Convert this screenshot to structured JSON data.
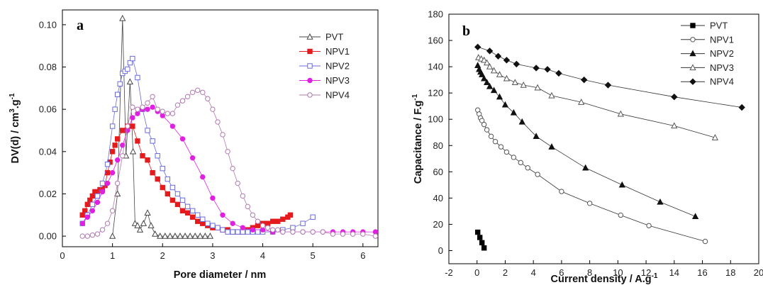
{
  "chart_data": [
    {
      "type": "line",
      "panel_label": "a",
      "xlabel": "Pore diameter / nm",
      "ylabel": "DV(d) / cm",
      "ylabel_sup": "3",
      "ylabel_tail": ".g",
      "ylabel_sup2": "-1",
      "xlim": [
        0,
        6.3
      ],
      "ylim": [
        -0.005,
        0.107
      ],
      "xticks": [
        0,
        1,
        2,
        3,
        4,
        5,
        6
      ],
      "yticks": [
        0.0,
        0.02,
        0.04,
        0.06,
        0.08,
        0.1
      ],
      "ytick_labels": [
        "0.00",
        "0.02",
        "0.04",
        "0.06",
        "0.08",
        "0.10"
      ],
      "legend_position": "top-right",
      "series": [
        {
          "name": "PVT",
          "color": "#444444",
          "marker": "triangle-open",
          "x": [
            1.0,
            1.1,
            1.2,
            1.27,
            1.35,
            1.41,
            1.45,
            1.5,
            1.55,
            1.62,
            1.7,
            1.77,
            1.85,
            1.95,
            2.05,
            2.15,
            2.25,
            2.35,
            2.45,
            2.55,
            2.65,
            2.75,
            2.85,
            2.95
          ],
          "y": [
            0.0,
            0.02,
            0.103,
            0.038,
            0.073,
            0.04,
            0.006,
            0.005,
            0.003,
            0.006,
            0.011,
            0.005,
            0.001,
            0.0,
            0.0,
            0.0,
            0.0,
            0.0,
            0.0,
            0.0,
            0.0,
            0.0,
            0.0,
            0.0
          ]
        },
        {
          "name": "NPV1",
          "color": "#e41a1c",
          "marker": "square-filled",
          "x": [
            0.4,
            0.45,
            0.5,
            0.55,
            0.6,
            0.65,
            0.7,
            0.75,
            0.8,
            0.85,
            0.9,
            0.95,
            1.0,
            1.05,
            1.1,
            1.2,
            1.3,
            1.4,
            1.5,
            1.6,
            1.7,
            1.8,
            1.9,
            2.0,
            2.1,
            2.2,
            2.3,
            2.4,
            2.5,
            2.6,
            2.7,
            2.8,
            2.9,
            3.0,
            3.1,
            3.2,
            3.3,
            3.4,
            3.5,
            3.6,
            3.7,
            3.8,
            3.9,
            4.0,
            4.1,
            4.2,
            4.3,
            4.4,
            4.5,
            4.55
          ],
          "y": [
            0.01,
            0.012,
            0.015,
            0.017,
            0.019,
            0.021,
            0.021,
            0.022,
            0.022,
            0.024,
            0.03,
            0.035,
            0.04,
            0.043,
            0.046,
            0.05,
            0.052,
            0.052,
            0.045,
            0.038,
            0.036,
            0.03,
            0.027,
            0.023,
            0.02,
            0.017,
            0.015,
            0.012,
            0.011,
            0.009,
            0.007,
            0.006,
            0.005,
            0.004,
            0.004,
            0.003,
            0.003,
            0.002,
            0.002,
            0.002,
            0.003,
            0.004,
            0.005,
            0.006,
            0.006,
            0.007,
            0.007,
            0.008,
            0.009,
            0.01
          ]
        },
        {
          "name": "NPV2",
          "color": "#6a6add",
          "marker": "square-open",
          "x": [
            0.4,
            0.5,
            0.6,
            0.7,
            0.8,
            0.9,
            1.0,
            1.05,
            1.1,
            1.15,
            1.2,
            1.25,
            1.3,
            1.35,
            1.4,
            1.5,
            1.6,
            1.7,
            1.8,
            1.9,
            2.0,
            2.1,
            2.2,
            2.3,
            2.4,
            2.5,
            2.6,
            2.7,
            2.8,
            2.9,
            3.0,
            3.1,
            3.2,
            3.3,
            3.4,
            3.5,
            3.6,
            3.7,
            3.8,
            3.9,
            4.0,
            4.2,
            4.4,
            4.6,
            4.8,
            5.0
          ],
          "y": [
            0.006,
            0.01,
            0.015,
            0.019,
            0.025,
            0.034,
            0.052,
            0.06,
            0.067,
            0.072,
            0.077,
            0.078,
            0.079,
            0.082,
            0.084,
            0.075,
            0.06,
            0.05,
            0.045,
            0.038,
            0.032,
            0.027,
            0.023,
            0.02,
            0.017,
            0.014,
            0.012,
            0.01,
            0.008,
            0.006,
            0.005,
            0.004,
            0.003,
            0.002,
            0.002,
            0.002,
            0.002,
            0.002,
            0.002,
            0.002,
            0.002,
            0.002,
            0.003,
            0.004,
            0.006,
            0.009
          ]
        },
        {
          "name": "NPV3",
          "color": "#e020e0",
          "marker": "circle-filled",
          "x": [
            0.4,
            0.5,
            0.6,
            0.7,
            0.8,
            0.9,
            1.0,
            1.1,
            1.2,
            1.3,
            1.4,
            1.5,
            1.6,
            1.7,
            1.8,
            1.9,
            2.0,
            2.2,
            2.4,
            2.6,
            2.8,
            3.0,
            3.2,
            3.4,
            3.6,
            3.8,
            4.0,
            4.2,
            4.4,
            4.6,
            4.8,
            5.0,
            5.2,
            5.4,
            5.6,
            5.8,
            6.0,
            6.25
          ],
          "y": [
            0.006,
            0.009,
            0.012,
            0.016,
            0.021,
            0.025,
            0.03,
            0.036,
            0.043,
            0.05,
            0.056,
            0.058,
            0.06,
            0.06,
            0.061,
            0.059,
            0.057,
            0.052,
            0.046,
            0.037,
            0.028,
            0.018,
            0.01,
            0.006,
            0.004,
            0.003,
            0.003,
            0.002,
            0.002,
            0.002,
            0.002,
            0.002,
            0.002,
            0.002,
            0.002,
            0.002,
            0.002,
            0.002
          ]
        },
        {
          "name": "NPV4",
          "color": "#b07ab0",
          "marker": "circle-open",
          "x": [
            0.4,
            0.5,
            0.6,
            0.7,
            0.8,
            0.9,
            1.0,
            1.1,
            1.2,
            1.3,
            1.4,
            1.5,
            1.6,
            1.7,
            1.8,
            1.9,
            2.0,
            2.1,
            2.2,
            2.3,
            2.4,
            2.5,
            2.6,
            2.7,
            2.8,
            2.9,
            3.0,
            3.1,
            3.2,
            3.3,
            3.4,
            3.5,
            3.6,
            3.7,
            3.8,
            3.9,
            4.0,
            4.1,
            4.2,
            4.3,
            4.4,
            4.6,
            4.8,
            5.0,
            5.2,
            5.4,
            5.6,
            5.8,
            6.0,
            6.25
          ],
          "y": [
            0.0,
            0.0,
            0.0005,
            0.001,
            0.003,
            0.006,
            0.012,
            0.025,
            0.038,
            0.052,
            0.061,
            0.06,
            0.061,
            0.063,
            0.066,
            0.06,
            0.059,
            0.058,
            0.058,
            0.062,
            0.064,
            0.066,
            0.068,
            0.069,
            0.068,
            0.065,
            0.06,
            0.054,
            0.048,
            0.04,
            0.032,
            0.025,
            0.019,
            0.014,
            0.01,
            0.007,
            0.005,
            0.004,
            0.003,
            0.003,
            0.002,
            0.002,
            0.002,
            0.002,
            0.002,
            0.001,
            0.001,
            0.001,
            0.001,
            0.0
          ]
        }
      ]
    },
    {
      "type": "line",
      "panel_label": "b",
      "xlabel": "Current density / A.g",
      "xlabel_sup": "-1",
      "ylabel": "Capacitance / F.g",
      "ylabel_sup": "-1",
      "xlim": [
        -2,
        20
      ],
      "ylim": [
        -10,
        180
      ],
      "xticks": [
        -2,
        0,
        2,
        4,
        6,
        8,
        10,
        12,
        14,
        16,
        18,
        20
      ],
      "yticks": [
        0,
        20,
        40,
        60,
        80,
        100,
        120,
        140,
        160,
        180
      ],
      "legend_position": "top-right",
      "series": [
        {
          "name": "PVT",
          "color": "#000000",
          "marker": "square-filled",
          "x": [
            0.05,
            0.2,
            0.35,
            0.5
          ],
          "y": [
            14,
            10,
            6,
            2
          ]
        },
        {
          "name": "NPV1",
          "color": "#555555",
          "marker": "circle-open",
          "x": [
            0.05,
            0.15,
            0.25,
            0.35,
            0.5,
            0.7,
            1.0,
            1.3,
            1.7,
            2.1,
            2.6,
            3.1,
            3.6,
            4.3,
            6.0,
            8.0,
            10.2,
            12.2,
            16.2
          ],
          "y": [
            107,
            104,
            101,
            99,
            96,
            92,
            87,
            83,
            79,
            75,
            71,
            67,
            63,
            58,
            45,
            36,
            27,
            19,
            7
          ]
        },
        {
          "name": "NPV2",
          "color": "#111111",
          "marker": "triangle-filled",
          "x": [
            0.05,
            0.15,
            0.25,
            0.35,
            0.5,
            0.7,
            0.9,
            1.2,
            1.6,
            2.0,
            2.6,
            3.2,
            4.2,
            5.3,
            7.7,
            10.3,
            13.0,
            15.5
          ],
          "y": [
            141,
            138,
            136,
            134,
            131,
            128,
            125,
            122,
            117,
            111,
            105,
            98,
            87,
            79,
            63,
            50,
            37,
            26
          ]
        },
        {
          "name": "NPV3",
          "color": "#555555",
          "marker": "triangle-open",
          "x": [
            0.1,
            0.3,
            0.5,
            0.7,
            0.9,
            1.2,
            1.6,
            2.1,
            2.7,
            3.3,
            4.3,
            5.3,
            7.4,
            10.2,
            14.0,
            16.9
          ],
          "y": [
            147,
            146,
            145,
            143,
            140,
            137,
            134,
            131,
            128,
            126,
            124,
            118,
            113,
            104,
            95,
            86
          ]
        },
        {
          "name": "NPV4",
          "color": "#111111",
          "marker": "diamond-filled",
          "x": [
            0.05,
            0.9,
            1.5,
            2.1,
            2.8,
            4.2,
            5.0,
            5.8,
            7.6,
            9.3,
            14.0,
            18.8
          ],
          "y": [
            155,
            152,
            148,
            145,
            142,
            139,
            138,
            135,
            130,
            126,
            117,
            109
          ]
        }
      ]
    }
  ]
}
